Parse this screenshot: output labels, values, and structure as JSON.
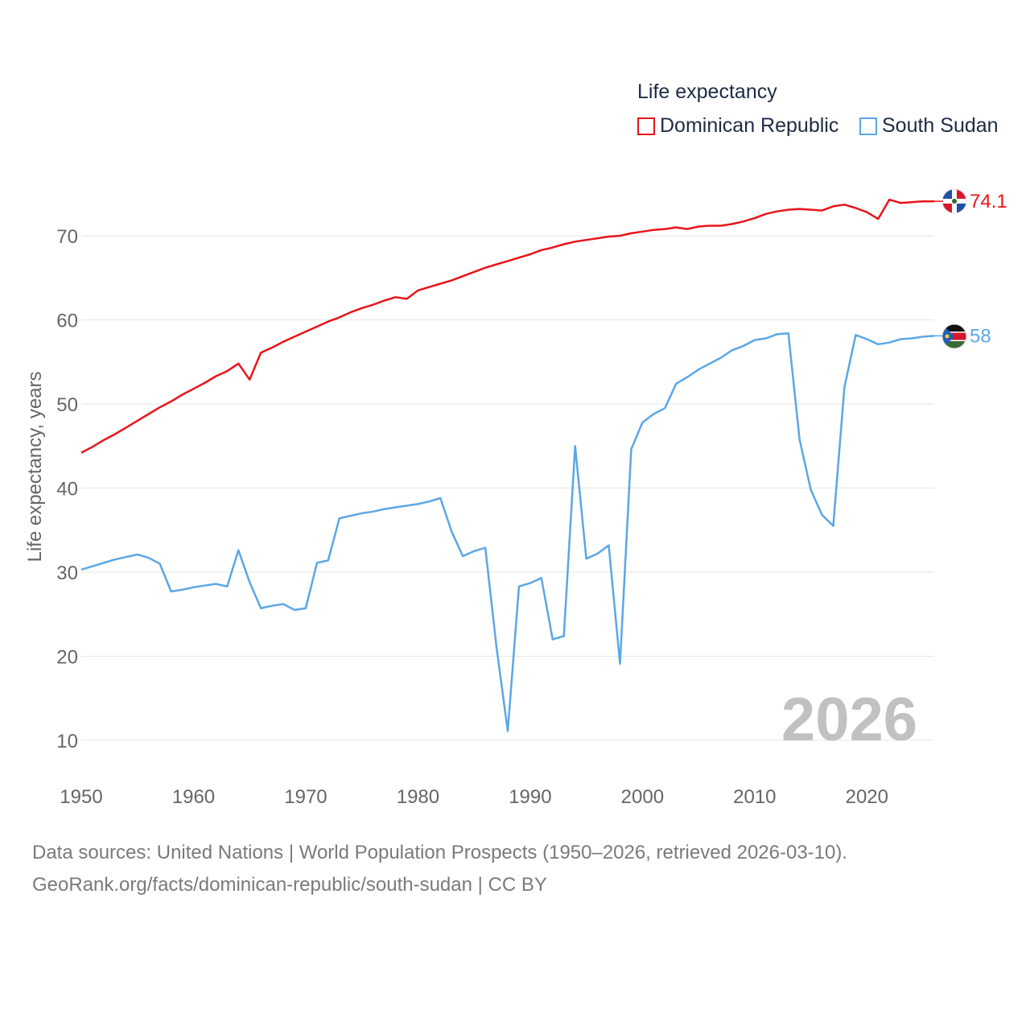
{
  "legend": {
    "title": "Life expectancy",
    "items": [
      {
        "label": "Dominican Republic",
        "color": "#e8141a"
      },
      {
        "label": "South Sudan",
        "color": "#5ba7e6"
      }
    ]
  },
  "year_watermark": "2026",
  "source_line1": "Data sources: United Nations | World Population Prospects (1950–2026, retrieved 2026-03-10).",
  "source_line2": "GeoRank.org/facts/dominican-republic/south-sudan | CC BY",
  "chart_data": {
    "type": "line",
    "title": "",
    "xlabel": "",
    "ylabel": "Life expectancy, years",
    "xlim": [
      1950,
      2026
    ],
    "ylim": [
      10,
      75
    ],
    "x_ticks": [
      1950,
      1960,
      1970,
      1980,
      1990,
      2000,
      2010,
      2020
    ],
    "y_ticks": [
      10,
      20,
      30,
      40,
      50,
      60,
      70
    ],
    "grid": true,
    "x": [
      1950,
      1951,
      1952,
      1953,
      1954,
      1955,
      1956,
      1957,
      1958,
      1959,
      1960,
      1961,
      1962,
      1963,
      1964,
      1965,
      1966,
      1967,
      1968,
      1969,
      1970,
      1971,
      1972,
      1973,
      1974,
      1975,
      1976,
      1977,
      1978,
      1979,
      1980,
      1981,
      1982,
      1983,
      1984,
      1985,
      1986,
      1987,
      1988,
      1989,
      1990,
      1991,
      1992,
      1993,
      1994,
      1995,
      1996,
      1997,
      1998,
      1999,
      2000,
      2001,
      2002,
      2003,
      2004,
      2005,
      2006,
      2007,
      2008,
      2009,
      2010,
      2011,
      2012,
      2013,
      2014,
      2015,
      2016,
      2017,
      2018,
      2019,
      2020,
      2021,
      2022,
      2023,
      2024,
      2025,
      2026
    ],
    "series": [
      {
        "name": "Dominican Republic",
        "color": "#e8141a",
        "end_label": "74.1",
        "values": [
          44.2,
          44.9,
          45.7,
          46.4,
          47.2,
          48.0,
          48.8,
          49.6,
          50.3,
          51.1,
          51.8,
          52.5,
          53.3,
          53.9,
          54.8,
          52.9,
          56.1,
          56.7,
          57.4,
          58.0,
          58.6,
          59.2,
          59.8,
          60.3,
          60.9,
          61.4,
          61.8,
          62.3,
          62.7,
          62.5,
          63.5,
          63.9,
          64.3,
          64.7,
          65.2,
          65.7,
          66.2,
          66.6,
          67.0,
          67.4,
          67.8,
          68.3,
          68.6,
          69.0,
          69.3,
          69.5,
          69.7,
          69.9,
          70.0,
          70.3,
          70.5,
          70.7,
          70.8,
          71.0,
          70.8,
          71.1,
          71.2,
          71.2,
          71.4,
          71.7,
          72.1,
          72.6,
          72.9,
          73.1,
          73.2,
          73.1,
          73.0,
          73.5,
          73.7,
          73.3,
          72.8,
          72.0,
          74.3,
          73.9,
          74.0,
          74.1,
          74.1
        ]
      },
      {
        "name": "South Sudan",
        "color": "#5ba7e6",
        "end_label": "58",
        "values": [
          30.3,
          30.7,
          31.1,
          31.5,
          31.8,
          32.1,
          31.7,
          31.0,
          27.7,
          27.9,
          28.2,
          28.4,
          28.6,
          28.3,
          32.6,
          28.8,
          25.7,
          26.0,
          26.2,
          25.5,
          25.7,
          31.1,
          31.4,
          36.4,
          36.7,
          37.0,
          37.2,
          37.5,
          37.7,
          37.9,
          38.1,
          38.4,
          38.8,
          34.8,
          31.9,
          32.5,
          32.9,
          21.0,
          11.1,
          28.3,
          28.7,
          29.3,
          22.0,
          22.4,
          45.0,
          31.6,
          32.2,
          33.2,
          19.1,
          44.6,
          47.8,
          48.8,
          49.5,
          52.4,
          53.2,
          54.1,
          54.8,
          55.5,
          56.4,
          56.9,
          57.6,
          57.8,
          58.3,
          58.4,
          45.8,
          39.8,
          36.8,
          35.5,
          52.0,
          58.2,
          57.7,
          57.1,
          57.3,
          57.7,
          57.8,
          58.0,
          58.1
        ]
      }
    ]
  }
}
